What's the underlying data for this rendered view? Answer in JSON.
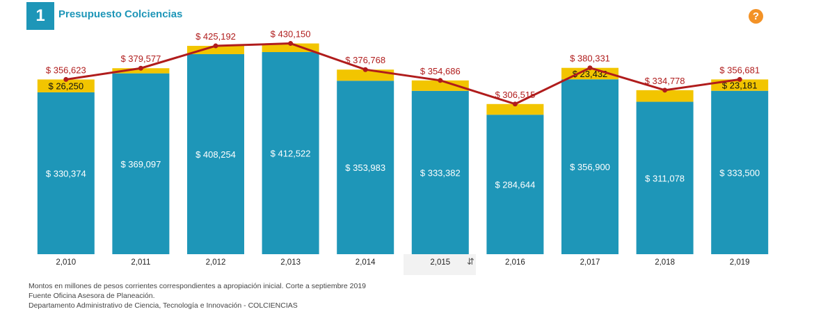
{
  "header": {
    "number": "1",
    "title": "Presupuesto Colciencias",
    "help_icon": "question-circle-icon",
    "help_label": "?"
  },
  "colors": {
    "primary": "#1e96b8",
    "secondary": "#f2c500",
    "line": "#b01c1c",
    "help": "#f39226"
  },
  "chart_data": {
    "type": "bar",
    "stacked": true,
    "categories": [
      "2,010",
      "2,011",
      "2,012",
      "2,013",
      "2,014",
      "2,015",
      "2,016",
      "2,017",
      "2,018",
      "2,019"
    ],
    "series": [
      {
        "values": [
          330374,
          369097,
          408254,
          412522,
          353983,
          333382,
          284644,
          356900,
          311078,
          333500
        ],
        "labels": [
          "$ 330,374",
          "$ 369,097",
          "$ 408,254",
          "$ 412,522",
          "$ 353,983",
          "$ 333,382",
          "$ 284,644",
          "$ 356,900",
          "$ 311,078",
          "$ 333,500"
        ]
      },
      {
        "values": [
          26250,
          10480,
          16938,
          17628,
          22785,
          21304,
          21871,
          23432,
          23700,
          23181
        ],
        "labels": [
          "$ 26,250",
          "",
          "",
          "",
          "",
          "",
          "",
          "$ 23,432",
          "",
          "$ 23,181"
        ]
      }
    ],
    "line": {
      "values": [
        356623,
        379577,
        425192,
        430150,
        376768,
        354686,
        306515,
        380331,
        334778,
        356681
      ],
      "labels": [
        "$ 356,623",
        "$ 379,577",
        "$ 425,192",
        "$ 430,150",
        "$ 376,768",
        "$ 354,686",
        "$ 306,515",
        "$ 380,331",
        "$ 334,778",
        "$ 356,681"
      ]
    },
    "ylim": [
      0,
      460000
    ],
    "grid": false,
    "legend": "none"
  },
  "toolbar": {
    "sort_icon": "sort-icon",
    "sort_glyph": "⇵"
  },
  "notes": [
    "Montos en millones de pesos corrientes correspondientes a apropiación inicial. Corte a septiembre 2019",
    "Fuente Oficina Asesora de Planeación.",
    "Departamento Administrativo de Ciencia, Tecnología e Innovación - COLCIENCIAS"
  ]
}
